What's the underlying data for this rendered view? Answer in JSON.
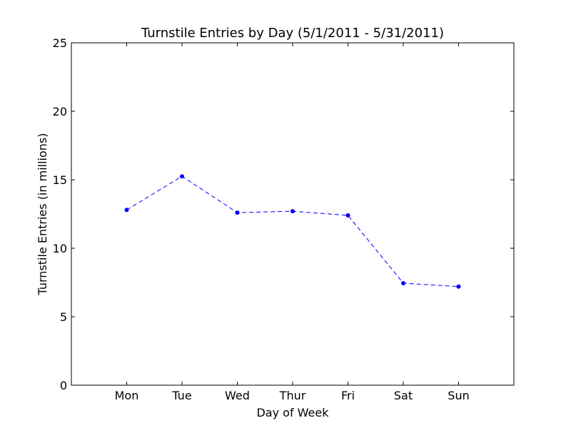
{
  "chart_data": {
    "type": "line",
    "title": "Turnstile Entries by Day (5/1/2011 - 5/31/2011)",
    "xlabel": "Day of Week",
    "ylabel": "Turnstile Entries (in millions)",
    "categories": [
      "Mon",
      "Tue",
      "Wed",
      "Thur",
      "Fri",
      "Sat",
      "Sun"
    ],
    "series": [
      {
        "values": [
          12.8,
          15.25,
          12.6,
          12.7,
          12.4,
          7.45,
          7.2
        ],
        "color": "#0000ff",
        "line_style": "dashed",
        "marker": "dot"
      }
    ],
    "ylim": [
      0,
      25
    ],
    "yticks": [
      "0",
      "5",
      "10",
      "15",
      "20",
      "25"
    ],
    "grid": false,
    "legend": "none"
  }
}
